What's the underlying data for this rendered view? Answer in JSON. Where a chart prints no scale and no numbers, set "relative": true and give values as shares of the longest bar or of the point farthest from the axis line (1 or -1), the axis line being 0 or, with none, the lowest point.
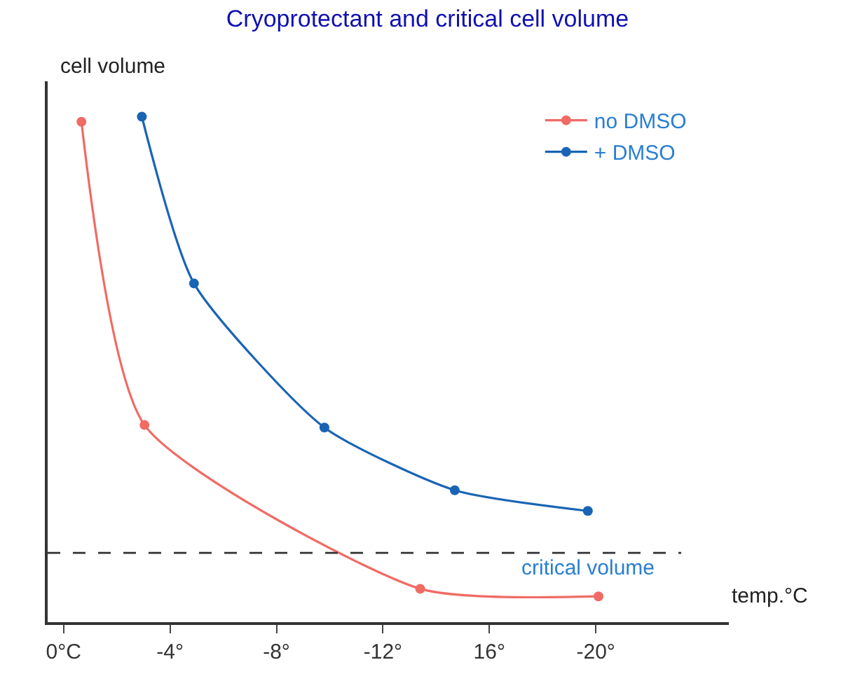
{
  "chart_data": {
    "type": "line",
    "title": "Cryoprotectant and critical cell volume",
    "xlabel": "temp.°C",
    "ylabel": "cell volume",
    "relative": true,
    "xlim": [
      0.6,
      -25
    ],
    "xticks": [
      {
        "value": 0,
        "label": "0°C"
      },
      {
        "value": -4,
        "label": "-4°"
      },
      {
        "value": -8,
        "label": "-8°"
      },
      {
        "value": -12,
        "label": "-12°"
      },
      {
        "value": -16,
        "label": "16°"
      },
      {
        "value": -20,
        "label": "-20°"
      }
    ],
    "series": [
      {
        "name": "no DMSO",
        "color": "#f06b64",
        "x": [
          -0.67,
          -3.04,
          -13.4,
          -20.1
        ],
        "values": [
          0.99,
          0.39,
          0.066,
          0.051
        ]
      },
      {
        "name": "+ DMSO",
        "color": "#1a64b4",
        "x": [
          -2.94,
          -4.9,
          -9.8,
          -14.7,
          -19.7
        ],
        "values": [
          1,
          0.67,
          0.385,
          0.261,
          0.22
        ]
      }
    ],
    "ref_lines": [
      {
        "axis": "y",
        "value": 0.137,
        "label": "critical volume",
        "color": "#333333",
        "line_style": "dashed"
      }
    ],
    "legend": "top right",
    "marker": "circle"
  }
}
